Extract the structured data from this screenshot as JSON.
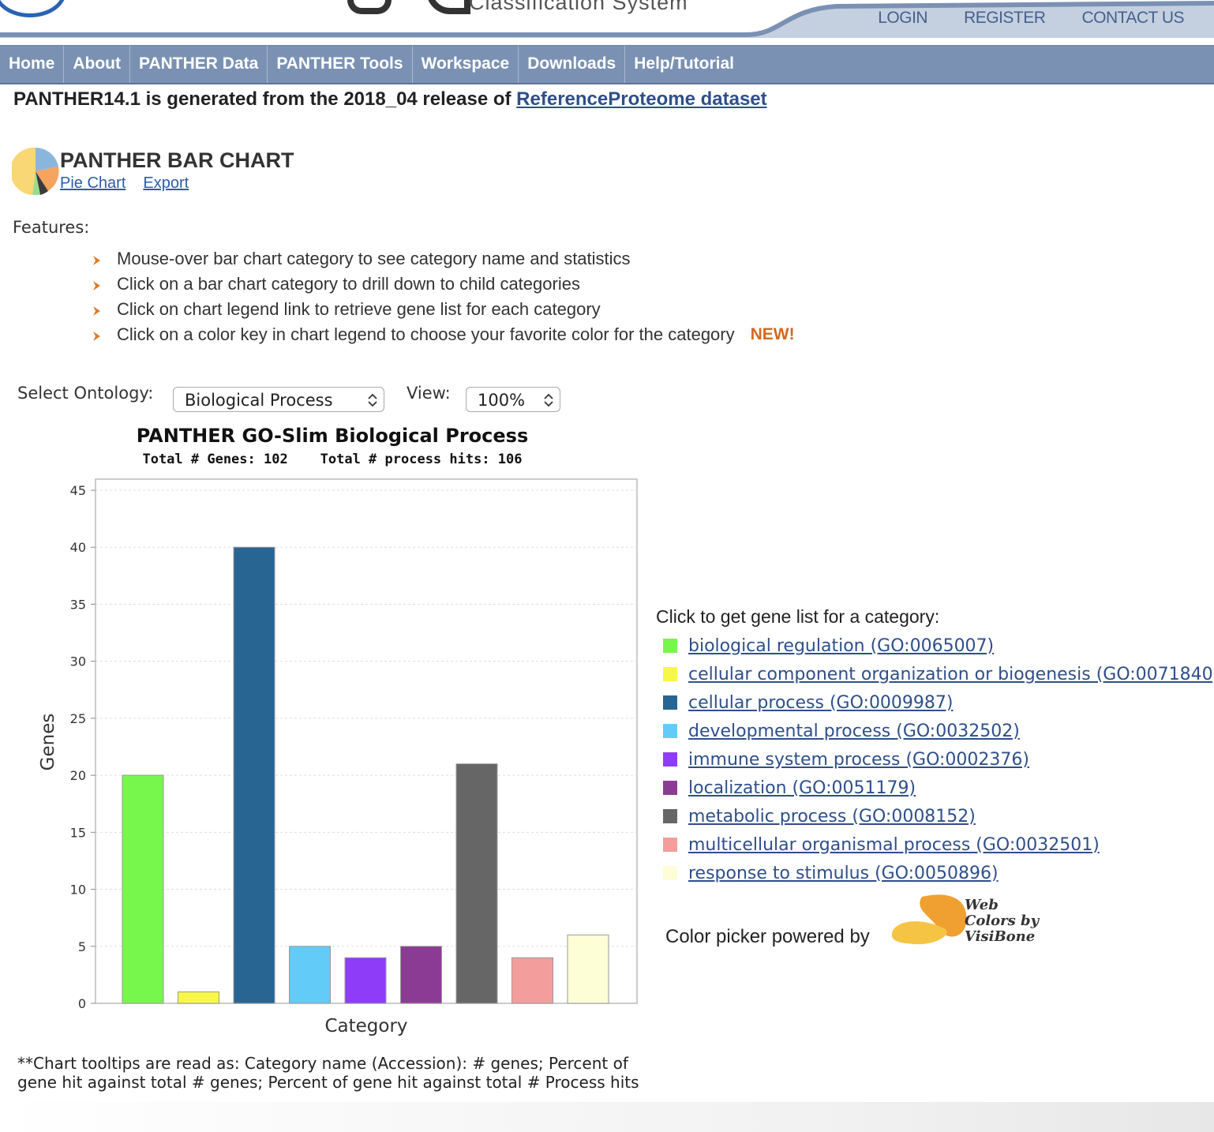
{
  "header": {
    "tagline": "Classification System",
    "top_links": [
      "LOGIN",
      "REGISTER",
      "CONTACT US"
    ]
  },
  "nav": {
    "items": [
      "Home",
      "About",
      "PANTHER Data",
      "PANTHER Tools",
      "Workspace",
      "Downloads",
      "Help/Tutorial"
    ]
  },
  "release": {
    "text": "PANTHER14.1 is generated from the 2018_04 release of ",
    "link": "ReferenceProteome dataset"
  },
  "page": {
    "title": "PANTHER BAR CHART",
    "links": [
      "Pie Chart",
      "Export"
    ]
  },
  "features": {
    "label": "Features:",
    "items": [
      "Mouse-over bar chart category to see category name and statistics",
      "Click on a bar chart category to drill down to child categories",
      "Click on chart legend link to retrieve gene list for each category",
      "Click on a color key in chart legend to choose your favorite color for the category"
    ],
    "new_tag": "NEW!"
  },
  "controls": {
    "ontology_label": "Select Ontology:",
    "ontology_value": "Biological Process",
    "view_label": "View:",
    "view_value": "100%"
  },
  "chart_data": {
    "type": "bar",
    "title": "PANTHER GO-Slim Biological Process",
    "subtitle": "Total # Genes: 102    Total # process hits: 106",
    "xlabel": "Category",
    "ylabel": "Genes",
    "ylim": [
      0,
      45
    ],
    "yticks": [
      0,
      5,
      10,
      15,
      20,
      25,
      30,
      35,
      40,
      45
    ],
    "grid": true,
    "categories": [
      "biological regulation",
      "cellular component organization or biogenesis",
      "cellular process",
      "developmental process",
      "immune system process",
      "localization",
      "metabolic process",
      "multicellular organismal process",
      "response to stimulus"
    ],
    "values": [
      20,
      1,
      40,
      5,
      4,
      5,
      21,
      4,
      6
    ],
    "colors": [
      "#77f74c",
      "#f7f748",
      "#286593",
      "#63cbf8",
      "#8e3cf7",
      "#8c3b94",
      "#666666",
      "#f39e9c",
      "#fdfdd6"
    ]
  },
  "legend": {
    "title": "Click to get gene list for a category:",
    "items": [
      {
        "label": "biological regulation (GO:0065007)",
        "color": "#77f74c"
      },
      {
        "label": "cellular component organization or biogenesis (GO:0071840)",
        "color": "#f7f748"
      },
      {
        "label": "cellular process (GO:0009987)",
        "color": "#286593"
      },
      {
        "label": "developmental process (GO:0032502)",
        "color": "#63cbf8"
      },
      {
        "label": "immune system process (GO:0002376)",
        "color": "#8e3cf7"
      },
      {
        "label": "localization (GO:0051179)",
        "color": "#8c3b94"
      },
      {
        "label": "metabolic process (GO:0008152)",
        "color": "#666666"
      },
      {
        "label": "multicellular organismal process (GO:0032501)",
        "color": "#f39e9c"
      },
      {
        "label": "response to stimulus (GO:0050896)",
        "color": "#fdfdd6"
      }
    ],
    "powered_by": "Color picker powered by",
    "visibone_text": [
      "Web",
      "Colors by",
      "VisiBone"
    ]
  },
  "note": "**Chart tooltips are read as: Category name (Accession): # genes; Percent of gene hit against total # genes; Percent of gene hit against total # Process hits"
}
